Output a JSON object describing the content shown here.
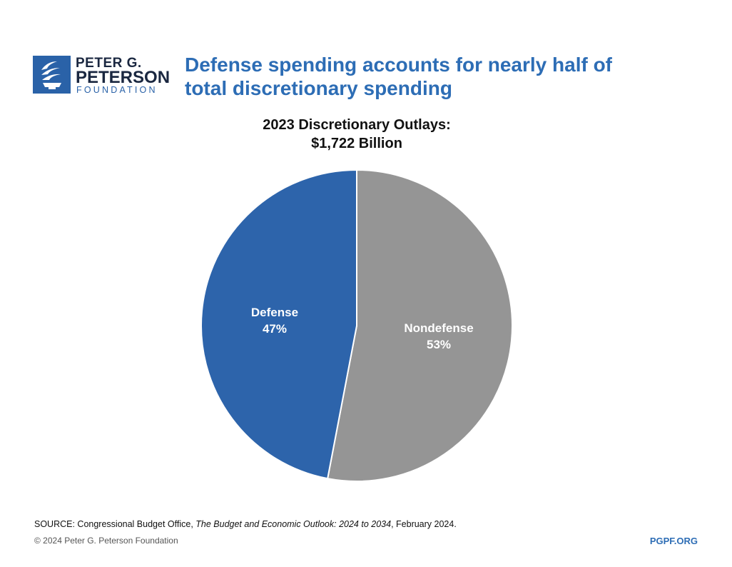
{
  "logo": {
    "line1": "PETER G.",
    "line2": "PETERSON",
    "line3": "FOUNDATION",
    "icon": "torch-icon"
  },
  "headline": "Defense spending accounts for nearly half of total discretionary spending",
  "chart_data": {
    "type": "pie",
    "title": "2023 Discretionary Outlays:",
    "subtitle": "$1,722 Billion",
    "slices": [
      {
        "label": "Defense",
        "value": 47,
        "display": "47%",
        "color": "#2d64ab"
      },
      {
        "label": "Nondefense",
        "value": 53,
        "display": "53%",
        "color": "#959595"
      }
    ],
    "start": "12 o'clock",
    "direction": "counterclockwise from top for first slice"
  },
  "footer": {
    "source_prefix": "SOURCE: Congressional Budget Office, ",
    "source_title": "The Budget and Economic Outlook: 2024 to 2034",
    "source_suffix": ", February 2024.",
    "copyright": "© 2024 Peter G. Peterson Foundation",
    "site": "PGPF.ORG"
  },
  "colors": {
    "brand_blue": "#2d6db5",
    "defense": "#2d64ab",
    "nondefense": "#959595"
  }
}
